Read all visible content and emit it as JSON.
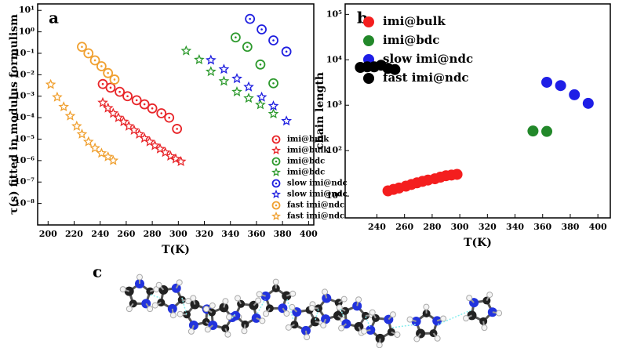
{
  "chart_data": [
    {
      "type": "scatter",
      "label": "a",
      "xlabel": "T(K)",
      "ylabel": "τ(s) fitted in modulus formulism",
      "xlim": [
        192,
        404
      ],
      "xticks": [
        200,
        220,
        240,
        260,
        280,
        300,
        320,
        340,
        360,
        380,
        400
      ],
      "ylim": [
        1e-09,
        20
      ],
      "ylog": true,
      "yticks": [
        {
          "value": 1e-08,
          "label": "10⁻⁸"
        },
        {
          "value": 1e-07,
          "label": "10⁻⁷"
        },
        {
          "value": 1e-06,
          "label": "10⁻⁶"
        },
        {
          "value": 1e-05,
          "label": "10⁻⁵"
        },
        {
          "value": 0.0001,
          "label": "10⁻⁴"
        },
        {
          "value": 0.001,
          "label": "10⁻³"
        },
        {
          "value": 0.01,
          "label": "10⁻²"
        },
        {
          "value": 0.1,
          "label": "10⁻¹"
        },
        {
          "value": 1,
          "label": "10⁰"
        },
        {
          "value": 10,
          "label": "10¹"
        }
      ],
      "legend": "lower right",
      "series": [
        {
          "name": "imi@bulk",
          "color": "#e8262a",
          "marker": "circle",
          "x": [
            242,
            248,
            255,
            261,
            268,
            274,
            280,
            287,
            293,
            299
          ],
          "values": [
            0.0037,
            0.0025,
            0.0016,
            0.001,
            0.00065,
            0.00042,
            0.00027,
            0.00016,
            0.0001,
            3e-05
          ]
        },
        {
          "name": "imi@bulk",
          "color": "#e8262a",
          "marker": "star",
          "x": [
            242,
            246,
            250,
            254,
            258,
            262,
            266,
            270,
            274,
            278,
            282,
            286,
            290,
            294,
            298,
            302
          ],
          "values": [
            0.0005,
            0.00028,
            0.00016,
            0.0001,
            6.5e-05,
            4e-05,
            2.6e-05,
            1.7e-05,
            1.1e-05,
            7.5e-06,
            5e-06,
            3.5e-06,
            2.4e-06,
            1.6e-06,
            1.2e-06,
            9e-07
          ]
        },
        {
          "name": "imi@bdc",
          "color": "#2e9a2e",
          "marker": "circle",
          "x": [
            344,
            353,
            363,
            373
          ],
          "values": [
            0.55,
            0.2,
            0.03,
            0.004
          ]
        },
        {
          "name": "imi@bdc",
          "color": "#2e9a2e",
          "marker": "star",
          "x": [
            306,
            316,
            325,
            335,
            345,
            354,
            363,
            373
          ],
          "values": [
            0.13,
            0.05,
            0.014,
            0.005,
            0.0016,
            0.0008,
            0.0004,
            0.00015
          ]
        },
        {
          "name": "slow imi@ndc",
          "color": "#2020e0",
          "marker": "circle",
          "x": [
            355,
            364,
            373,
            383
          ],
          "values": [
            4,
            1.3,
            0.4,
            0.12
          ]
        },
        {
          "name": "slow imi@ndc",
          "color": "#2020e0",
          "marker": "star",
          "x": [
            325,
            335,
            345,
            354,
            364,
            373,
            383
          ],
          "values": [
            0.048,
            0.018,
            0.0066,
            0.0027,
            0.0009,
            0.00035,
            7e-05
          ]
        },
        {
          "name": "fast imi@ndc",
          "color": "#f0a030",
          "marker": "circle",
          "x": [
            226,
            231,
            236,
            241,
            246,
            251
          ],
          "values": [
            0.2,
            0.1,
            0.047,
            0.025,
            0.012,
            0.006
          ]
        },
        {
          "name": "fast imi@ndc",
          "color": "#f0a030",
          "marker": "star",
          "x": [
            202,
            207,
            212,
            217,
            222,
            226,
            231,
            236,
            241,
            246,
            250
          ],
          "values": [
            0.0035,
            0.0009,
            0.00032,
            0.00012,
            4e-05,
            1.7e-05,
            7.5e-06,
            3.8e-06,
            2.2e-06,
            1.5e-06,
            1e-06
          ]
        }
      ]
    },
    {
      "type": "scatter",
      "label": "b",
      "xlabel": "T(K)",
      "ylabel": "chain length",
      "xlim": [
        217,
        409
      ],
      "xticks": [
        240,
        260,
        280,
        300,
        320,
        340,
        360,
        380,
        400
      ],
      "ylim": [
        3.3,
        170000
      ],
      "ylog": true,
      "yticks": [
        {
          "value": 10,
          "label": "10¹"
        },
        {
          "value": 100,
          "label": "10²"
        },
        {
          "value": 1000,
          "label": "10³"
        },
        {
          "value": 10000,
          "label": "10⁴"
        },
        {
          "value": 100000,
          "label": "10⁵"
        }
      ],
      "legend": "upper right",
      "series": [
        {
          "name": "imi@bulk",
          "color": "#f41e1e",
          "marker": "dot",
          "x": [
            248,
            252,
            256,
            261,
            265,
            269,
            273,
            277,
            282,
            286,
            290,
            294,
            298
          ],
          "values": [
            13,
            14,
            15,
            16.5,
            18,
            19.5,
            21,
            22.5,
            24,
            26,
            28,
            29,
            30
          ]
        },
        {
          "name": "imi@bdc",
          "color": "#22882a",
          "marker": "dot",
          "x": [
            353,
            363
          ],
          "values": [
            270,
            265
          ]
        },
        {
          "name": "slow imi@ndc",
          "color": "#1e1ee6",
          "marker": "dot",
          "x": [
            363,
            373,
            383,
            393
          ],
          "values": [
            3200,
            2700,
            1700,
            1100
          ]
        },
        {
          "name": "fast imi@ndc",
          "color": "#000000",
          "marker": "dot",
          "x": [
            228,
            233,
            238,
            243,
            248,
            253
          ],
          "values": [
            6800,
            7000,
            7000,
            7600,
            6500,
            6100
          ]
        }
      ]
    }
  ],
  "panel_c": {
    "label": "c"
  }
}
